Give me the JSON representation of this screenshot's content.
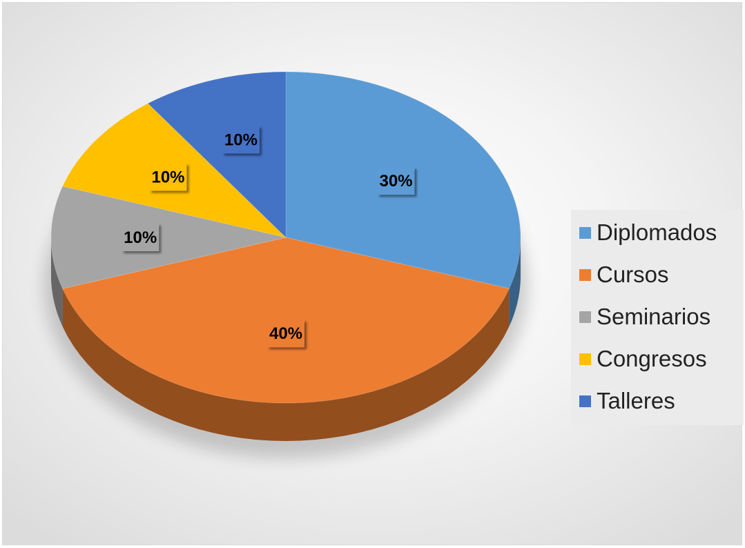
{
  "chart_data": {
    "type": "pie",
    "style": "3d",
    "categories": [
      "Diplomados",
      "Cursos",
      "Seminarios",
      "Congresos",
      "Talleres"
    ],
    "values": [
      30,
      40,
      10,
      10,
      10
    ],
    "data_labels": [
      "30%",
      "40%",
      "10%",
      "10%",
      "10%"
    ],
    "colors": [
      "#5b9bd5",
      "#ed7d31",
      "#a5a5a5",
      "#ffc000",
      "#4472c4"
    ],
    "legend_position": "right",
    "title": ""
  }
}
